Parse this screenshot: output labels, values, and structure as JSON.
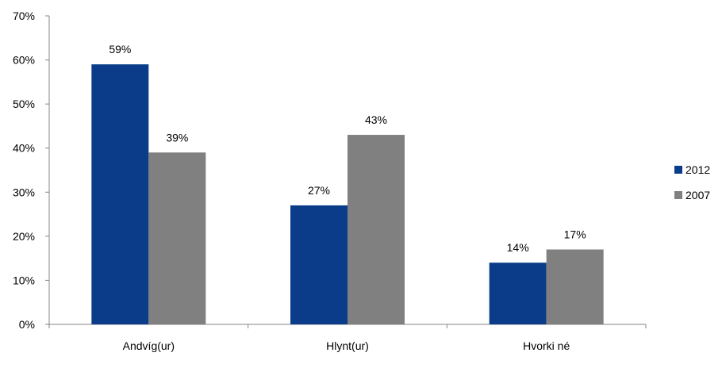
{
  "chart_data": {
    "type": "bar",
    "title": "",
    "xlabel": "",
    "ylabel": "",
    "categories": [
      "Andvíg(ur)",
      "Hlynt(ur)",
      "Hvorki né"
    ],
    "series": [
      {
        "name": "2012",
        "values": [
          59,
          27,
          14
        ],
        "labels": [
          "59%",
          "27%",
          "14%"
        ],
        "color": "#0a3c89"
      },
      {
        "name": "2007",
        "values": [
          39,
          43,
          17
        ],
        "labels": [
          "39%",
          "43%",
          "17%"
        ],
        "color": "#808080"
      }
    ],
    "ylim": [
      0,
      70
    ],
    "yticks": [
      "0%",
      "10%",
      "20%",
      "30%",
      "40%",
      "50%",
      "60%",
      "70%"
    ],
    "grid": false,
    "legend_position": "right"
  }
}
